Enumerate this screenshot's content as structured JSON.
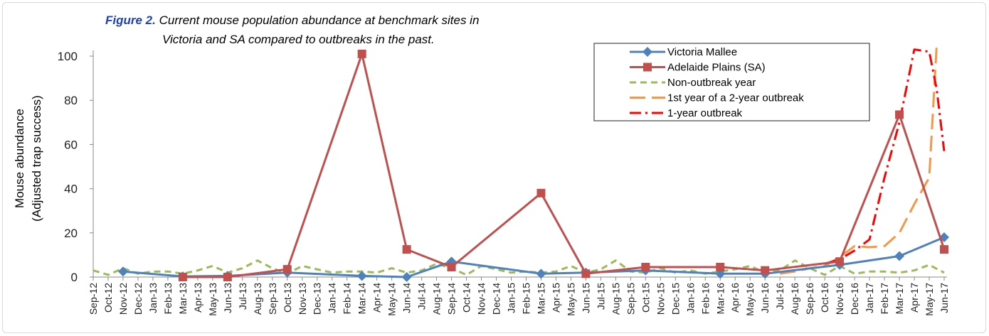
{
  "figure": {
    "prefix": "Figure 2.",
    "title_line1": " Current mouse population abundance at benchmark sites in",
    "title_line2": "Victoria and SA compared to outbreaks in the past."
  },
  "chart_data": {
    "type": "line",
    "ylabel_line1": "Mouse abundance",
    "ylabel_line2": "(Adjusted trap success)",
    "xlabel": "",
    "ylim": [
      0,
      100
    ],
    "yticks": [
      0,
      20,
      40,
      60,
      80,
      100
    ],
    "grid": false,
    "legend_position": "top-right",
    "categories": [
      "Sep-12",
      "Oct-12",
      "Nov-12",
      "Dec-12",
      "Jan-13",
      "Feb-13",
      "Mar-13",
      "Apr-13",
      "May-13",
      "Jun-13",
      "Jul-13",
      "Aug-13",
      "Sep-13",
      "Oct-13",
      "Nov-13",
      "Dec-13",
      "Jan-14",
      "Feb-14",
      "Mar-14",
      "Apr-14",
      "May-14",
      "Jun-14",
      "Jul-14",
      "Aug-14",
      "Sep-14",
      "Oct-14",
      "Nov-14",
      "Dec-14",
      "Jan-15",
      "Feb-15",
      "Mar-15",
      "Apr-15",
      "May-15",
      "Jun-15",
      "Jul-15",
      "Aug-15",
      "Sep-15",
      "Oct-15",
      "Nov-15",
      "Dec-15",
      "Jan-16",
      "Feb-16",
      "Mar-16",
      "Apr-16",
      "May-16",
      "Jun-16",
      "Jul-16",
      "Aug-16",
      "Sep-16",
      "Oct-16",
      "Nov-16",
      "Dec-16",
      "Jan-17",
      "Feb-17",
      "Mar-17",
      "Apr-17",
      "May-17",
      "Jun-17"
    ],
    "series": [
      {
        "name": "Victoria Mallee",
        "color": "#4f81bd",
        "style": "solid",
        "marker": "diamond",
        "points": [
          [
            2,
            2.5
          ],
          [
            6,
            0.3
          ],
          [
            9,
            0.5
          ],
          [
            13,
            2
          ],
          [
            18,
            0.5
          ],
          [
            21,
            0
          ],
          [
            24,
            7
          ],
          [
            30,
            1.5
          ],
          [
            33,
            2
          ],
          [
            37,
            3
          ],
          [
            42,
            1.5
          ],
          [
            45,
            1.5
          ],
          [
            50,
            5.5
          ],
          [
            54,
            9.5
          ],
          [
            57,
            18
          ]
        ]
      },
      {
        "name": "Adelaide Plains (SA)",
        "color": "#c0504d",
        "style": "solid",
        "marker": "square",
        "points": [
          [
            6,
            0
          ],
          [
            9,
            0
          ],
          [
            13,
            3.5
          ],
          [
            18,
            101
          ],
          [
            21,
            12.5
          ],
          [
            24,
            4.5
          ],
          [
            30,
            38
          ],
          [
            33,
            1.5
          ],
          [
            37,
            4.5
          ],
          [
            42,
            4.5
          ],
          [
            45,
            3
          ],
          [
            50,
            7
          ],
          [
            54,
            73.5
          ],
          [
            57,
            12.5
          ]
        ]
      },
      {
        "name": "Non-outbreak year",
        "color": "#9bbb59",
        "style": "dashed",
        "marker": "none",
        "points": [
          [
            0,
            3
          ],
          [
            1,
            1
          ],
          [
            2,
            4
          ],
          [
            3,
            1.5
          ],
          [
            4,
            2.5
          ],
          [
            5,
            2.5
          ],
          [
            6,
            1.5
          ],
          [
            7,
            3
          ],
          [
            8,
            5
          ],
          [
            9,
            2
          ],
          [
            10,
            4
          ],
          [
            11,
            7.5
          ],
          [
            12,
            4
          ],
          [
            13,
            1.5
          ],
          [
            14,
            5
          ],
          [
            15,
            3.5
          ],
          [
            16,
            2
          ],
          [
            17,
            2.5
          ],
          [
            18,
            2.5
          ],
          [
            19,
            2
          ],
          [
            20,
            4
          ],
          [
            21,
            2
          ],
          [
            22,
            3
          ],
          [
            23,
            6
          ],
          [
            24,
            4
          ],
          [
            25,
            1
          ],
          [
            26,
            5
          ],
          [
            27,
            3.5
          ],
          [
            28,
            2
          ],
          [
            29,
            2.5
          ],
          [
            30,
            2
          ],
          [
            31,
            2.5
          ],
          [
            32,
            5
          ],
          [
            33,
            2
          ],
          [
            34,
            3.5
          ],
          [
            35,
            7.5
          ],
          [
            36,
            2.5
          ],
          [
            37,
            2
          ],
          [
            38,
            4
          ],
          [
            39,
            2
          ],
          [
            40,
            3
          ],
          [
            41,
            1.5
          ],
          [
            42,
            2.5
          ],
          [
            43,
            3.5
          ],
          [
            44,
            5
          ],
          [
            45,
            2
          ],
          [
            46,
            3
          ],
          [
            47,
            7.5
          ],
          [
            48,
            4
          ],
          [
            49,
            1
          ],
          [
            50,
            5
          ],
          [
            51,
            1.5
          ],
          [
            52,
            2.5
          ],
          [
            53,
            2.5
          ],
          [
            54,
            2
          ],
          [
            55,
            3
          ],
          [
            56,
            5.5
          ],
          [
            57,
            2
          ]
        ]
      },
      {
        "name": "1st year of a 2-year outbreak",
        "color": "#f79646",
        "style": "longdash",
        "marker": "none",
        "points": [
          [
            46,
            1.5
          ],
          [
            47,
            2.5
          ],
          [
            48,
            4
          ],
          [
            49,
            5
          ],
          [
            50,
            9
          ],
          [
            51,
            14
          ],
          [
            52,
            13.5
          ],
          [
            53,
            14
          ],
          [
            54,
            20
          ],
          [
            55,
            33
          ],
          [
            56,
            45
          ],
          [
            56.5,
            105
          ]
        ]
      },
      {
        "name": "1-year outbreak",
        "color": "#ff0000",
        "style": "dashdot",
        "marker": "none",
        "points": [
          [
            49,
            6
          ],
          [
            50,
            8
          ],
          [
            51,
            12
          ],
          [
            52,
            17
          ],
          [
            53,
            45
          ],
          [
            54,
            70
          ],
          [
            55,
            103
          ],
          [
            56,
            102
          ],
          [
            56.5,
            85
          ],
          [
            57,
            57
          ]
        ]
      }
    ]
  }
}
